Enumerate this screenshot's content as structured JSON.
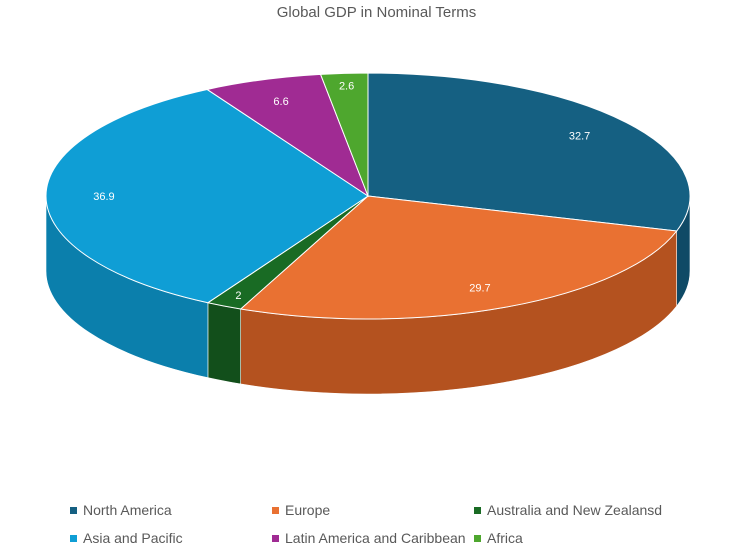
{
  "chart_data": {
    "type": "pie",
    "title": "Global GDP in Nominal Terms",
    "slices": [
      {
        "label": "North America",
        "value": 32.7,
        "value_label": "32.7",
        "color": "#156082",
        "side_color": "#0f4a66"
      },
      {
        "label": "Europe",
        "value": 29.7,
        "value_label": "29.7",
        "color": "#e97132",
        "side_color": "#b4521f"
      },
      {
        "label": "Australia and New Zealansd",
        "value": 2,
        "value_label": "2",
        "color": "#196b24",
        "side_color": "#124f1b"
      },
      {
        "label": "Asia and Pacific",
        "value": 36.9,
        "value_label": "36.9",
        "color": "#0f9ed5",
        "side_color": "#0b7fac"
      },
      {
        "label": "Latin America and Caribbean",
        "value": 6.6,
        "value_label": "6.6",
        "color": "#a02b93",
        "side_color": "#7a1f70"
      },
      {
        "label": "Africa",
        "value": 2.6,
        "value_label": "2.6",
        "color": "#4ea72e",
        "side_color": "#3a8020"
      }
    ],
    "legend_position": "bottom",
    "style": "3d-pie"
  }
}
